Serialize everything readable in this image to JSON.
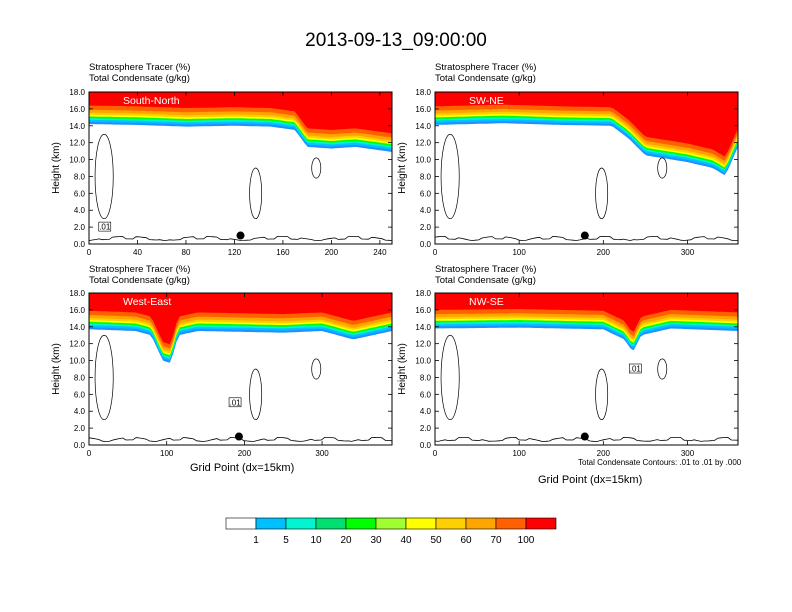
{
  "title": "2013-09-13_09:00:00",
  "colors": {
    "levels": [
      "#ffffff",
      "#1e90ff",
      "#00bfff",
      "#00f5d0",
      "#00e070",
      "#00ff00",
      "#a0ff30",
      "#ffff00",
      "#ffd000",
      "#ffa500",
      "#ff6000",
      "#ff0000"
    ]
  },
  "chart_data": [
    {
      "type": "heatmap",
      "panel_title": "South-North",
      "header_line1": "Stratosphere Tracer   (%)",
      "header_line2": "Total Condensate   (g/kg)",
      "ylabel": "Height (km)",
      "xlabel": "",
      "ylim": [
        0,
        18
      ],
      "xlim": [
        0,
        250
      ],
      "yticks": [
        "0.0",
        "2.0",
        "4.0",
        "6.0",
        "8.0",
        "10.0",
        "12.0",
        "14.0",
        "16.0",
        "18.0"
      ],
      "xticks": [
        0,
        40,
        80,
        120,
        160,
        200,
        240
      ],
      "tropopause_km": [
        [
          0,
          14.7
        ],
        [
          40,
          14.6
        ],
        [
          80,
          14.4
        ],
        [
          120,
          14.5
        ],
        [
          150,
          14.4
        ],
        [
          170,
          14.0
        ],
        [
          180,
          12.0
        ],
        [
          200,
          11.8
        ],
        [
          220,
          12.0
        ],
        [
          250,
          11.4
        ]
      ],
      "marker": [
        125,
        1.0
      ],
      "contour_label": ".01",
      "contour_label_at": [
        13,
        2.0
      ]
    },
    {
      "type": "heatmap",
      "panel_title": "SW-NE",
      "header_line1": "Stratosphere Tracer   (%)",
      "header_line2": "Total Condensate   (g/kg)",
      "ylabel": "Height (km)",
      "xlabel": "",
      "ylim": [
        0,
        18
      ],
      "xlim": [
        0,
        360
      ],
      "yticks": [
        "0.0",
        "2.0",
        "4.0",
        "6.0",
        "8.0",
        "10.0",
        "12.0",
        "14.0",
        "16.0",
        "18.0"
      ],
      "xticks": [
        0,
        100,
        200,
        300
      ],
      "tropopause_km": [
        [
          0,
          14.6
        ],
        [
          80,
          14.8
        ],
        [
          150,
          14.6
        ],
        [
          210,
          14.5
        ],
        [
          230,
          13.0
        ],
        [
          250,
          11.0
        ],
        [
          300,
          10.2
        ],
        [
          330,
          9.5
        ],
        [
          345,
          8.6
        ],
        [
          360,
          12.0
        ]
      ],
      "marker": [
        178,
        1.0
      ]
    },
    {
      "type": "heatmap",
      "panel_title": "West-East",
      "header_line1": "Stratosphere Tracer   (%)",
      "header_line2": "Total Condensate   (g/kg)",
      "ylabel": "Height (km)",
      "xlabel": "Grid Point (dx=15km)",
      "ylim": [
        0,
        18
      ],
      "xlim": [
        0,
        390
      ],
      "yticks": [
        "0.0",
        "2.0",
        "4.0",
        "6.0",
        "8.0",
        "10.0",
        "12.0",
        "14.0",
        "16.0",
        "18.0"
      ],
      "xticks": [
        0,
        100,
        200,
        300
      ],
      "tropopause_km": [
        [
          0,
          14.2
        ],
        [
          60,
          14.0
        ],
        [
          80,
          13.5
        ],
        [
          95,
          10.5
        ],
        [
          105,
          10.2
        ],
        [
          115,
          13.5
        ],
        [
          140,
          14.0
        ],
        [
          250,
          13.8
        ],
        [
          300,
          14.0
        ],
        [
          340,
          13.0
        ],
        [
          390,
          14.0
        ]
      ],
      "marker": [
        193,
        1.0
      ],
      "contour_label": ".01",
      "contour_label_at": [
        188,
        5.0
      ]
    },
    {
      "type": "heatmap",
      "panel_title": "NW-SE",
      "header_line1": "Stratosphere Tracer   (%)",
      "header_line2": "Total Condensate   (g/kg)",
      "ylabel": "Height (km)",
      "xlabel": "Grid Point (dx=15km)",
      "ylim": [
        0,
        18
      ],
      "xlim": [
        0,
        360
      ],
      "yticks": [
        "0.0",
        "2.0",
        "4.0",
        "6.0",
        "8.0",
        "10.0",
        "12.0",
        "14.0",
        "16.0",
        "18.0"
      ],
      "xticks": [
        0,
        100,
        200,
        300
      ],
      "tropopause_km": [
        [
          0,
          14.3
        ],
        [
          100,
          14.4
        ],
        [
          200,
          14.2
        ],
        [
          225,
          13.0
        ],
        [
          235,
          11.5
        ],
        [
          245,
          13.5
        ],
        [
          280,
          14.3
        ],
        [
          360,
          14.0
        ]
      ],
      "marker": [
        178,
        1.0
      ],
      "contour_label": ".01",
      "contour_label_at": [
        238,
        9.0
      ],
      "note": "Total Condensate Contours: .01 to .01 by .000"
    }
  ],
  "colorbar": {
    "labels": [
      "1",
      "5",
      "10",
      "20",
      "30",
      "40",
      "50",
      "60",
      "70",
      "100"
    ]
  }
}
